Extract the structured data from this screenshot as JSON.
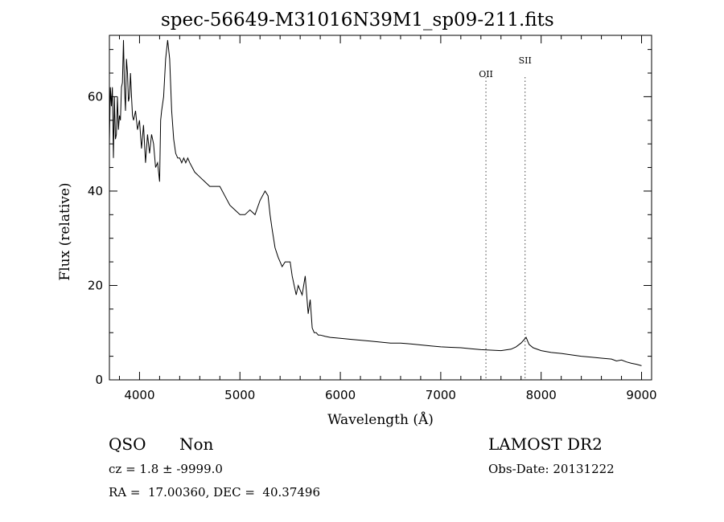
{
  "header": {
    "title": "spec-56649-M31016N39M1_sp09-211.fits"
  },
  "info": {
    "object_class": "QSO",
    "subclass": "Non",
    "survey": "LAMOST DR2",
    "redshift_line": "cz = 1.8 ± -9999.0",
    "obs_date_line": "Obs-Date: 20131222",
    "coords_line": "RA =  17.00360, DEC =  40.37496"
  },
  "chart_data": {
    "type": "line",
    "xlabel": "Wavelength (Å)",
    "ylabel": "Flux (relative)",
    "xlim": [
      3700,
      9100
    ],
    "ylim": [
      0,
      73
    ],
    "x_ticks": [
      4000,
      5000,
      6000,
      7000,
      8000,
      9000
    ],
    "y_ticks": [
      0,
      20,
      40,
      60
    ],
    "grid": false,
    "line_markers": [
      {
        "label": "OII",
        "x": 7450
      },
      {
        "label": "SII",
        "x": 7840
      }
    ],
    "series": [
      {
        "x": [
          3700,
          3710,
          3720,
          3730,
          3740,
          3750,
          3760,
          3770,
          3780,
          3790,
          3800,
          3810,
          3820,
          3830,
          3840,
          3850,
          3860,
          3870,
          3880,
          3890,
          3900,
          3910,
          3920,
          3930,
          3940,
          3960,
          3980,
          4000,
          4020,
          4040,
          4060,
          4080,
          4100,
          4120,
          4140,
          4160,
          4180,
          4200,
          4210,
          4220,
          4240,
          4260,
          4280,
          4300,
          4320,
          4340,
          4360,
          4380,
          4400,
          4420,
          4440,
          4460,
          4480,
          4500,
          4550,
          4600,
          4650,
          4700,
          4750,
          4800,
          4850,
          4900,
          4950,
          5000,
          5050,
          5100,
          5150,
          5200,
          5250,
          5280,
          5300,
          5320,
          5350,
          5380,
          5400,
          5420,
          5450,
          5500,
          5520,
          5540,
          5560,
          5580,
          5600,
          5620,
          5650,
          5680,
          5700,
          5720,
          5740,
          5760,
          5780,
          5800,
          5850,
          5900,
          6000,
          6100,
          6200,
          6300,
          6400,
          6500,
          6600,
          6700,
          6800,
          6900,
          7000,
          7100,
          7200,
          7300,
          7400,
          7500,
          7600,
          7700,
          7750,
          7800,
          7830,
          7850,
          7880,
          7920,
          8000,
          8100,
          8200,
          8300,
          8400,
          8500,
          8600,
          8700,
          8750,
          8800,
          8850,
          8900,
          8950,
          9000
        ],
        "y": [
          50,
          62,
          58,
          62,
          47,
          60,
          51,
          52,
          60,
          53,
          56,
          55,
          62,
          63,
          72,
          62,
          57,
          68,
          65,
          59,
          60,
          65,
          60,
          56,
          55,
          57,
          53,
          55,
          49,
          54,
          46,
          52,
          48,
          52,
          50,
          45,
          46,
          42,
          55,
          57,
          60,
          68,
          72,
          68,
          57,
          51,
          48,
          47,
          47,
          46,
          47,
          46,
          47,
          46,
          44,
          43,
          42,
          41,
          41,
          41,
          39,
          37,
          36,
          35,
          35,
          36,
          35,
          38,
          40,
          39,
          35,
          32,
          28,
          26,
          25,
          24,
          25,
          25,
          22,
          20,
          18,
          20,
          19,
          18,
          22,
          14,
          17,
          11,
          10,
          10,
          9.5,
          9.5,
          9.2,
          9,
          8.8,
          8.6,
          8.4,
          8.2,
          8,
          7.8,
          7.8,
          7.6,
          7.4,
          7.2,
          7,
          6.9,
          6.8,
          6.6,
          6.4,
          6.3,
          6.2,
          6.5,
          7,
          7.8,
          8.5,
          9,
          7.5,
          6.8,
          6.2,
          5.8,
          5.6,
          5.3,
          5,
          4.8,
          4.6,
          4.4,
          4,
          4.2,
          3.8,
          3.5,
          3.3,
          3
        ]
      }
    ]
  }
}
